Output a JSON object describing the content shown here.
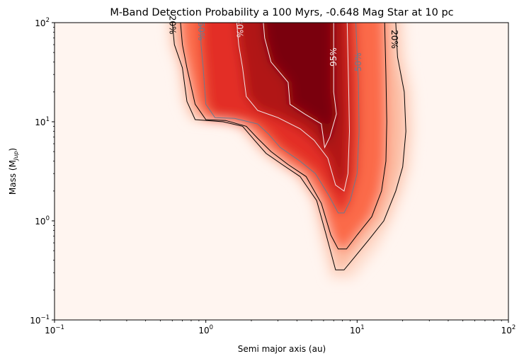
{
  "chart_data": {
    "type": "heatmap",
    "title": "M-Band Detection Probability a 100 Myrs, -0.648 Mag Star at 10 pc",
    "xlabel": "Semi major axis (au)",
    "ylabel_main": "Mass (M",
    "ylabel_sub": "Jup",
    "ylabel_end": ")",
    "x_scale": "log",
    "y_scale": "log",
    "xlim": [
      0.1,
      100
    ],
    "ylim": [
      0.1,
      100
    ],
    "colormap": "Reds",
    "x_ticks": [
      {
        "value": 0.1,
        "base": "10",
        "exp": "−1"
      },
      {
        "value": 1,
        "base": "10",
        "exp": "0"
      },
      {
        "value": 10,
        "base": "10",
        "exp": "1"
      },
      {
        "value": 100,
        "base": "10",
        "exp": "2"
      }
    ],
    "y_ticks": [
      {
        "value": 0.1,
        "base": "10",
        "exp": "−1"
      },
      {
        "value": 1,
        "base": "10",
        "exp": "0"
      },
      {
        "value": 10,
        "base": "10",
        "exp": "1"
      },
      {
        "value": 100,
        "base": "10",
        "exp": "2"
      }
    ],
    "contours": [
      {
        "level": 20,
        "label": "20%",
        "label_left": "20%",
        "color": "#000000",
        "points": [
          [
            0.6,
            100
          ],
          [
            0.62,
            60
          ],
          [
            0.7,
            35
          ],
          [
            0.75,
            16
          ],
          [
            0.85,
            10.5
          ],
          [
            1.3,
            10
          ],
          [
            1.75,
            9
          ],
          [
            2.1,
            6.5
          ],
          [
            2.5,
            4.8
          ],
          [
            3.2,
            3.7
          ],
          [
            4.2,
            2.8
          ],
          [
            5.4,
            1.6
          ],
          [
            6.2,
            0.75
          ],
          [
            7.2,
            0.32
          ],
          [
            8.2,
            0.32
          ],
          [
            9.5,
            0.42
          ],
          [
            12,
            0.65
          ],
          [
            15,
            1.0
          ],
          [
            18,
            2.0
          ],
          [
            20,
            3.5
          ],
          [
            21,
            8
          ],
          [
            20.5,
            20
          ],
          [
            18.5,
            45
          ],
          [
            18,
            100
          ]
        ]
      },
      {
        "level": 30,
        "label": "",
        "label_left": "",
        "color": "#000000",
        "points": [
          [
            0.68,
            100
          ],
          [
            0.7,
            60
          ],
          [
            0.75,
            35
          ],
          [
            0.85,
            15
          ],
          [
            1.0,
            10.5
          ],
          [
            1.35,
            10.3
          ],
          [
            1.85,
            9
          ],
          [
            2.2,
            6.8
          ],
          [
            2.7,
            5
          ],
          [
            3.5,
            3.7
          ],
          [
            4.6,
            2.8
          ],
          [
            5.8,
            1.5
          ],
          [
            6.7,
            0.72
          ],
          [
            7.5,
            0.52
          ],
          [
            8.5,
            0.52
          ],
          [
            10,
            0.72
          ],
          [
            12.5,
            1.1
          ],
          [
            14.5,
            2.0
          ],
          [
            15.5,
            4
          ],
          [
            15.7,
            10
          ],
          [
            15.5,
            30
          ],
          [
            15.2,
            100
          ]
        ]
      },
      {
        "level": 50,
        "label": "50%",
        "label_left": "50%",
        "color": "#6b7a8f",
        "points": [
          [
            0.92,
            100
          ],
          [
            0.93,
            60
          ],
          [
            0.96,
            35
          ],
          [
            1.0,
            15
          ],
          [
            1.15,
            11
          ],
          [
            1.55,
            10.8
          ],
          [
            2.2,
            9.5
          ],
          [
            2.6,
            7.5
          ],
          [
            3.1,
            5.5
          ],
          [
            4.2,
            4.0
          ],
          [
            5.3,
            3.0
          ],
          [
            6.5,
            1.8
          ],
          [
            7.5,
            1.2
          ],
          [
            8.2,
            1.2
          ],
          [
            9.0,
            1.6
          ],
          [
            10,
            3.0
          ],
          [
            10.3,
            8
          ],
          [
            10.2,
            25
          ],
          [
            10,
            50
          ],
          [
            9.8,
            100
          ]
        ]
      },
      {
        "level": 80,
        "label": "",
        "label_left": "80%",
        "color": "#f2e4e6",
        "points": [
          [
            1.6,
            100
          ],
          [
            1.65,
            60
          ],
          [
            1.75,
            35
          ],
          [
            1.85,
            18
          ],
          [
            2.2,
            13
          ],
          [
            3,
            11
          ],
          [
            4.2,
            8.5
          ],
          [
            5.2,
            6.5
          ],
          [
            6.4,
            4.3
          ],
          [
            7.2,
            2.3
          ],
          [
            8.2,
            2.0
          ],
          [
            8.7,
            3.0
          ],
          [
            8.9,
            8
          ],
          [
            8.8,
            20
          ],
          [
            8.6,
            100
          ]
        ]
      },
      {
        "level": 95,
        "label": "95%",
        "label_left": "",
        "color": "#f7ecec",
        "points": [
          [
            2.4,
            100
          ],
          [
            2.45,
            70
          ],
          [
            2.7,
            40
          ],
          [
            3.5,
            25
          ],
          [
            3.6,
            15
          ],
          [
            4.5,
            12
          ],
          [
            5.8,
            9.5
          ],
          [
            6.1,
            5.5
          ],
          [
            6.6,
            7
          ],
          [
            7.3,
            12
          ],
          [
            7.0,
            20
          ],
          [
            7.0,
            40
          ],
          [
            7.0,
            100
          ]
        ]
      }
    ]
  }
}
